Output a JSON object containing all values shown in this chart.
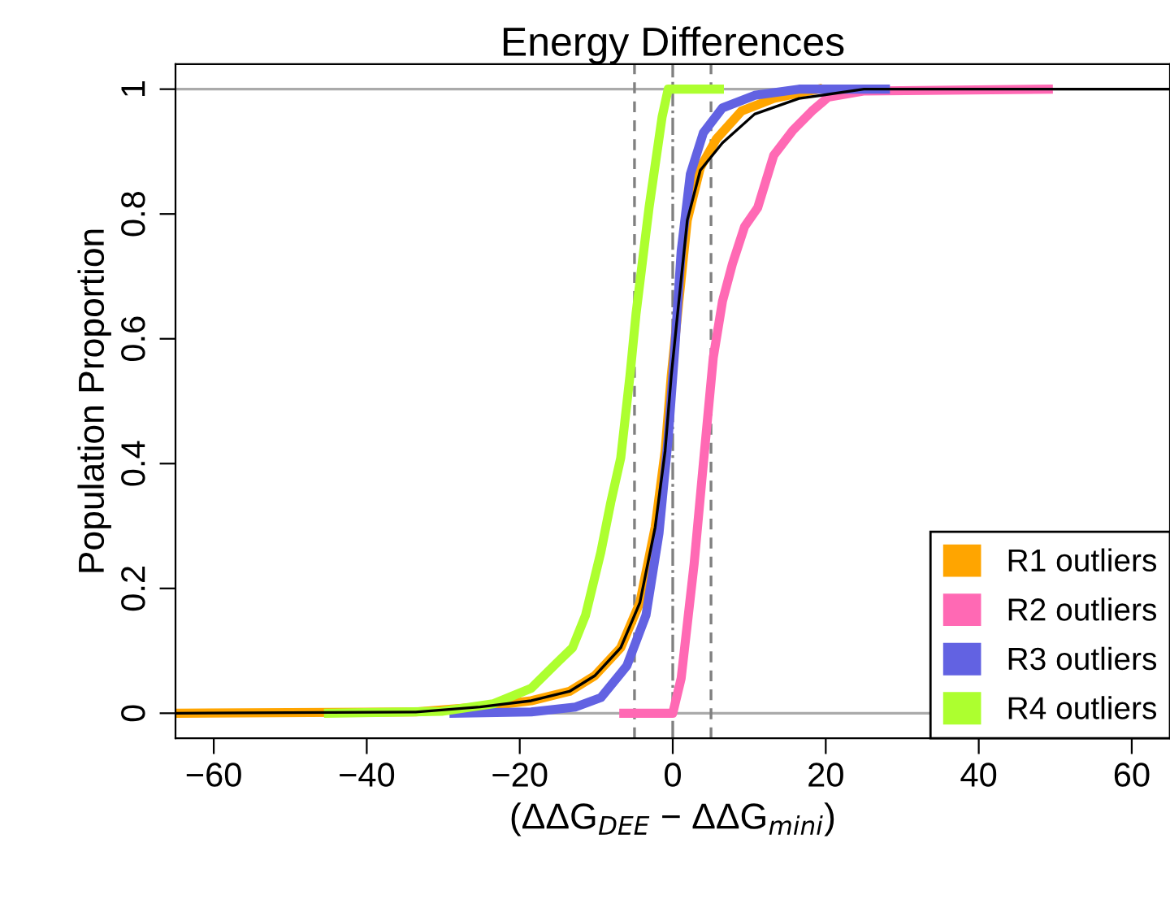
{
  "chart_data": {
    "type": "line",
    "title": "Energy Differences",
    "xlabel": "(ΔΔG$_{DEE}$ − ΔΔG$_{mini}$)",
    "ylabel": "Population Proportion",
    "xlim": [
      -65,
      65
    ],
    "ylim": [
      -0.04,
      1.04
    ],
    "xticks": [
      {
        "value": -60,
        "label": "−60"
      },
      {
        "value": -40,
        "label": "−40"
      },
      {
        "value": -20,
        "label": "−20"
      },
      0,
      20,
      40,
      60
    ],
    "yticks": [
      0,
      0.2,
      0.4,
      0.6,
      0.8,
      1
    ],
    "legend": "bottom right",
    "grid": false,
    "marker": "none",
    "line_style": "solid",
    "ref_lines": [
      {
        "axis": "y",
        "value": 0,
        "color": "#aaaaaa",
        "line_style": "solid"
      },
      {
        "axis": "y",
        "value": 1,
        "color": "#aaaaaa",
        "line_style": "solid"
      },
      {
        "axis": "x",
        "value": -5,
        "color": "#808080",
        "line_style": "dashed"
      },
      {
        "axis": "x",
        "value": 5,
        "color": "#808080",
        "line_style": "dashed"
      },
      {
        "axis": "x",
        "value": 0,
        "color": "#808080",
        "line_style": "dashdot"
      }
    ],
    "series": [
      {
        "color": "#000000",
        "x": [
          -65,
          -33.6,
          -25.2,
          -18.5,
          -13.5,
          -10.2,
          -6.8,
          -4.3,
          -2.3,
          -1.0,
          -0.2,
          0.8,
          1.9,
          3.6,
          6.5,
          10.7,
          16.5,
          25,
          65
        ],
        "values": [
          0,
          0.002,
          0.01,
          0.02,
          0.035,
          0.06,
          0.105,
          0.177,
          0.298,
          0.42,
          0.54,
          0.66,
          0.79,
          0.87,
          0.914,
          0.96,
          0.985,
          1,
          1
        ]
      },
      {
        "name": "R1 outliers",
        "color": "#ffa500",
        "x": [
          -65,
          -33.6,
          -25.2,
          -18.5,
          -13.5,
          -10.2,
          -6.8,
          -4.3,
          -2.3,
          -1.0,
          -0.2,
          0.8,
          1.9,
          3.6,
          5.7,
          9.0,
          13.2,
          19
        ],
        "values": [
          0,
          0.002,
          0.01,
          0.02,
          0.035,
          0.06,
          0.105,
          0.177,
          0.298,
          0.42,
          0.54,
          0.66,
          0.79,
          0.874,
          0.92,
          0.965,
          0.985,
          1
        ]
      },
      {
        "name": "R2 outliers",
        "color": "#ff69b4",
        "x": [
          -6.4,
          0,
          1.1,
          2.8,
          4.0,
          5.3,
          6.5,
          7.8,
          9.4,
          11.1,
          13.2,
          15.7,
          18.2,
          20.3,
          24.9,
          49.1
        ],
        "values": [
          0,
          0,
          0.056,
          0.24,
          0.4,
          0.57,
          0.66,
          0.72,
          0.78,
          0.81,
          0.894,
          0.934,
          0.965,
          0.987,
          0.997,
          1
        ]
      },
      {
        "name": "R3 outliers",
        "color": "#6262e2",
        "x": [
          -28.6,
          -18.5,
          -12.7,
          -9.4,
          -6.0,
          -3.5,
          -1.8,
          -0.6,
          0.3,
          1.1,
          2.3,
          4.0,
          6.5,
          10.7,
          16.5,
          27.8
        ],
        "values": [
          0,
          0.002,
          0.01,
          0.025,
          0.076,
          0.157,
          0.288,
          0.44,
          0.59,
          0.74,
          0.864,
          0.93,
          0.97,
          0.99,
          1,
          1
        ]
      },
      {
        "name": "R4 outliers",
        "color": "#adff2f",
        "x": [
          -45,
          -30.2,
          -23.5,
          -18.5,
          -15.2,
          -13.1,
          -11.4,
          -9.4,
          -8.1,
          -6.8,
          -5.6,
          -4.8,
          -3.1,
          -1.4,
          -0.6,
          6.1
        ],
        "values": [
          0,
          0.003,
          0.015,
          0.04,
          0.08,
          0.105,
          0.157,
          0.258,
          0.338,
          0.409,
          0.54,
          0.64,
          0.81,
          0.955,
          1,
          1
        ]
      }
    ]
  }
}
